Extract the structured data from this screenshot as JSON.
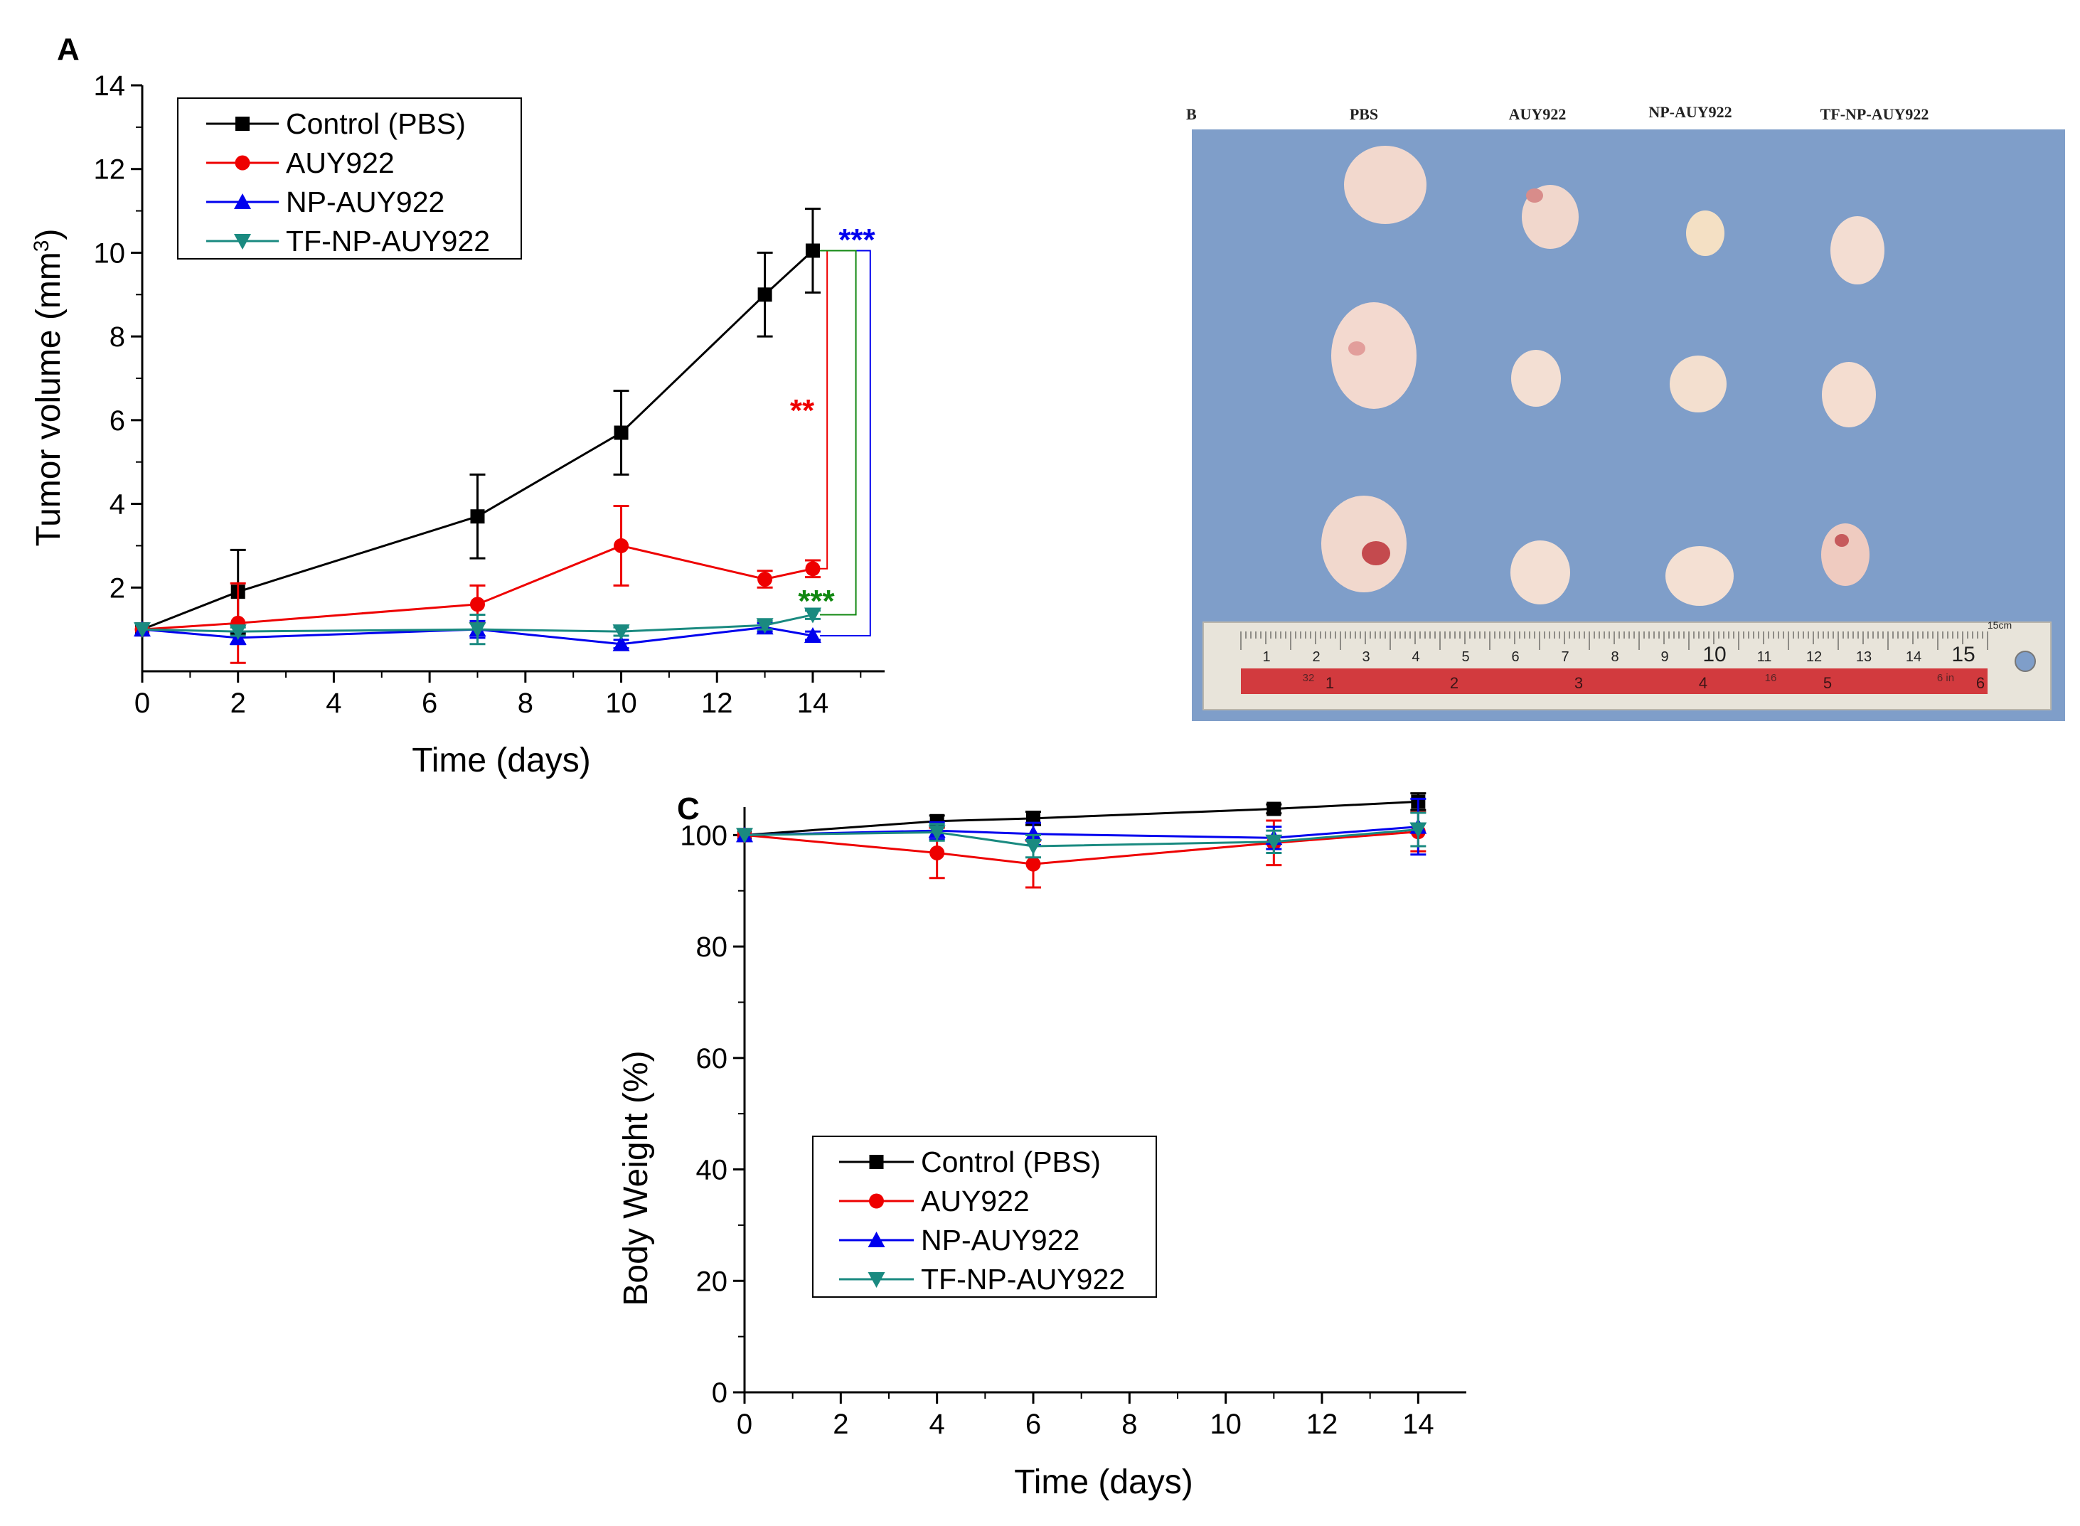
{
  "chart_data": [
    {
      "panel": "A",
      "type": "line",
      "xlabel": "Time (days)",
      "ylabel": "Tumor volume (mm³)",
      "ylabel_base": "Tumor volume (mm",
      "ylabel_sup": "3",
      "ylabel_close": ")",
      "xlim": [
        0,
        15.5
      ],
      "ylim": [
        0,
        14
      ],
      "xticks": [
        0,
        2,
        4,
        6,
        8,
        10,
        12,
        14
      ],
      "yticks": [
        2,
        4,
        6,
        8,
        10,
        12,
        14
      ],
      "legend_position": "top-left",
      "series": [
        {
          "name": "Control (PBS)",
          "color": "#000000",
          "marker": "square",
          "x": [
            0,
            2,
            7,
            10,
            13,
            14
          ],
          "y": [
            1.0,
            1.9,
            3.7,
            5.7,
            9.0,
            10.05
          ],
          "err": [
            0,
            1.0,
            1.0,
            1.0,
            1.0,
            1.0
          ]
        },
        {
          "name": "AUY922",
          "color": "#ee0000",
          "marker": "circle",
          "x": [
            0,
            2,
            7,
            10,
            13,
            14
          ],
          "y": [
            1.0,
            1.15,
            1.6,
            3.0,
            2.2,
            2.45
          ],
          "err": [
            0,
            0.95,
            0.45,
            0.95,
            0.2,
            0.2
          ]
        },
        {
          "name": "NP-AUY922",
          "color": "#0000ee",
          "marker": "triangle-up",
          "x": [
            0,
            2,
            7,
            10,
            13,
            14
          ],
          "y": [
            1.0,
            0.8,
            1.0,
            0.65,
            1.05,
            0.85
          ],
          "err": [
            0,
            0.15,
            0.2,
            0.1,
            0.1,
            0.1
          ]
        },
        {
          "name": "TF-NP-AUY922",
          "color": "#1a8a80",
          "marker": "triangle-down",
          "x": [
            0,
            2,
            7,
            10,
            13,
            14
          ],
          "y": [
            1.0,
            0.95,
            1.0,
            0.95,
            1.1,
            1.35
          ],
          "err": [
            0,
            0.1,
            0.35,
            0.1,
            0.1,
            0.1
          ]
        }
      ],
      "annotations": [
        {
          "text": "***",
          "color": "#0000ee"
        },
        {
          "text": "**",
          "color": "#ee0000"
        },
        {
          "text": "***",
          "color": "#118811"
        }
      ]
    },
    {
      "panel": "C",
      "type": "line",
      "xlabel": "Time (days)",
      "ylabel": "Body Weight (%)",
      "xlim": [
        0,
        15
      ],
      "ylim": [
        0,
        110
      ],
      "xticks": [
        0,
        2,
        4,
        6,
        8,
        10,
        12,
        14
      ],
      "yticks": [
        0,
        20,
        40,
        60,
        80,
        100
      ],
      "legend_position": "lower-left",
      "series": [
        {
          "name": "Control (PBS)",
          "color": "#000000",
          "marker": "square",
          "x": [
            0,
            4,
            6,
            11,
            14
          ],
          "y": [
            100,
            102.5,
            103,
            104.7,
            106
          ],
          "err": [
            0,
            1.0,
            1.2,
            0.8,
            1.5
          ]
        },
        {
          "name": "AUY922",
          "color": "#ee0000",
          "marker": "circle",
          "x": [
            0,
            4,
            6,
            11,
            14
          ],
          "y": [
            100,
            96.8,
            94.8,
            98.6,
            100.6
          ],
          "err": [
            0,
            4.5,
            4.2,
            4.0,
            3.5
          ]
        },
        {
          "name": "NP-AUY922",
          "color": "#0000ee",
          "marker": "triangle-up",
          "x": [
            0,
            4,
            6,
            11,
            14
          ],
          "y": [
            100,
            100.8,
            100.2,
            99.5,
            101.5
          ],
          "err": [
            0,
            1.5,
            2.0,
            2.0,
            5.0
          ]
        },
        {
          "name": "TF-NP-AUY922",
          "color": "#1a8a80",
          "marker": "triangle-down",
          "x": [
            0,
            4,
            6,
            11,
            14
          ],
          "y": [
            100,
            100.5,
            98,
            98.8,
            101
          ],
          "err": [
            0,
            1.5,
            2.0,
            2.0,
            3.0
          ]
        }
      ]
    }
  ],
  "photo": {
    "panel_label": "B",
    "column_labels": [
      "PBS",
      "AUY922",
      "NP-AUY922",
      "TF-NP-AUY922"
    ],
    "ruler": {
      "unit_label": "15cm",
      "top_numbers": [
        "1",
        "2",
        "3",
        "4",
        "5",
        "6",
        "7",
        "8",
        "9",
        "10",
        "11",
        "12",
        "13",
        "14",
        "15"
      ],
      "bottom_numbers": [
        "1",
        "2",
        "3",
        "4",
        "5",
        "6"
      ],
      "bottom_small": [
        "32",
        "16",
        "6 in"
      ]
    },
    "colors": {
      "background": "#7f9ec9",
      "tumor": "#f1d7cc",
      "ruler": "#e8e4da",
      "ruler_band": "#d23a3e"
    }
  }
}
